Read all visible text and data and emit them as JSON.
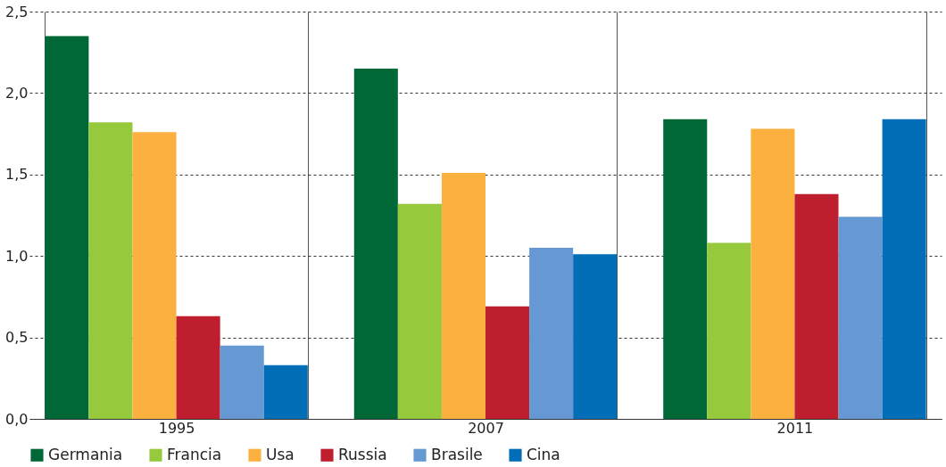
{
  "chart_data": {
    "type": "bar",
    "categories": [
      "1995",
      "2007",
      "2011"
    ],
    "series": [
      {
        "name": "Germania",
        "color": "#006837",
        "values": [
          2.35,
          2.15,
          1.84
        ]
      },
      {
        "name": "Francia",
        "color": "#97c93d",
        "values": [
          1.82,
          1.32,
          1.08
        ]
      },
      {
        "name": "Usa",
        "color": "#fbb040",
        "values": [
          1.76,
          1.51,
          1.78
        ]
      },
      {
        "name": "Russia",
        "color": "#be1e2d",
        "values": [
          0.63,
          0.69,
          1.38
        ]
      },
      {
        "name": "Brasile",
        "color": "#6699d3",
        "values": [
          0.45,
          1.05,
          1.24
        ]
      },
      {
        "name": "Cina",
        "color": "#036eb8",
        "values": [
          0.33,
          1.01,
          1.84
        ]
      }
    ],
    "ylim": [
      0,
      2.5
    ],
    "yticks": [
      {
        "value": 0,
        "label": "0,0"
      },
      {
        "value": 0.5,
        "label": "0,5"
      },
      {
        "value": 1,
        "label": "1,0"
      },
      {
        "value": 1.5,
        "label": "1,5"
      },
      {
        "value": 2,
        "label": "2,0"
      },
      {
        "value": 2.5,
        "label": "2,5"
      }
    ],
    "grid": true,
    "legend": "bottom left"
  }
}
